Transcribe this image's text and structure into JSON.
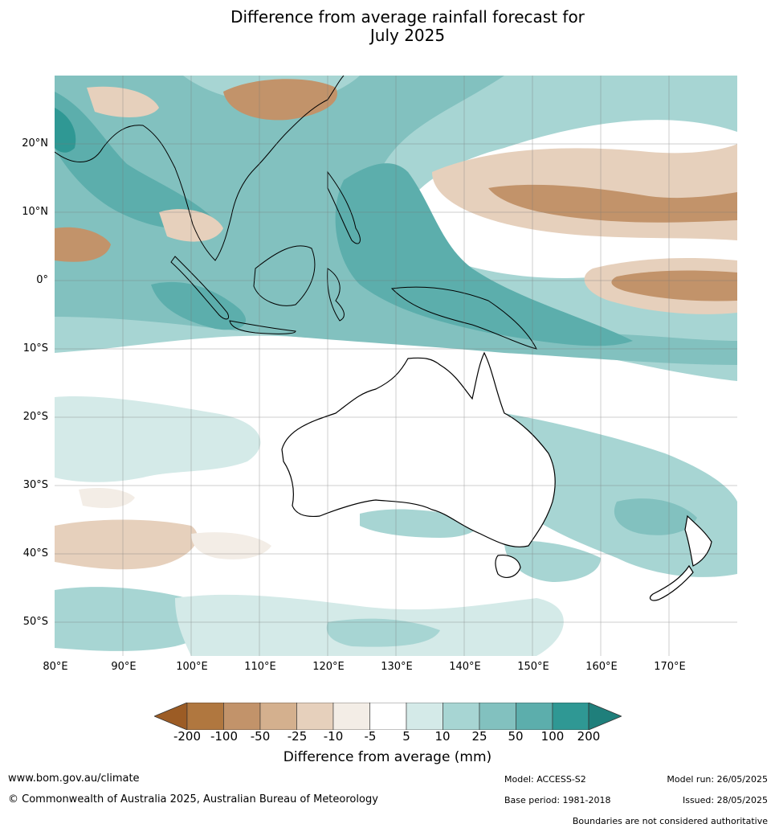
{
  "title_line1": "Difference from average rainfall forecast for",
  "title_line2": "July 2025",
  "lat_labels": [
    "20°N",
    "10°N",
    "0°",
    "10°S",
    "20°S",
    "30°S",
    "40°S",
    "50°S"
  ],
  "lon_labels": [
    "80°E",
    "90°E",
    "100°E",
    "110°E",
    "120°E",
    "130°E",
    "140°E",
    "150°E",
    "160°E",
    "170°E"
  ],
  "legend": {
    "ticks": [
      "-200",
      "-100",
      "-50",
      "-25",
      "-10",
      "-5",
      "5",
      "10",
      "25",
      "50",
      "100",
      "200"
    ],
    "colors": [
      "#9c5c25",
      "#b0773f",
      "#c2936a",
      "#d4b08e",
      "#e6d0bc",
      "#f3ede6",
      "#ffffff",
      "#d4eae8",
      "#a7d5d3",
      "#82c1bf",
      "#5caeac",
      "#2f9894",
      "#1f7f7b"
    ],
    "title": "Difference from average (mm)"
  },
  "footer": {
    "website": "www.bom.gov.au/climate",
    "copyright": "© Commonwealth of Australia 2025, Australian Bureau of Meteorology",
    "model": "Model: ACCESS-S2",
    "base_period": "Base period: 1981-2018",
    "model_run": "Model run: 26/05/2025",
    "issued": "Issued: 28/05/2025",
    "disclaimer": "Boundaries are not considered authoritative"
  }
}
